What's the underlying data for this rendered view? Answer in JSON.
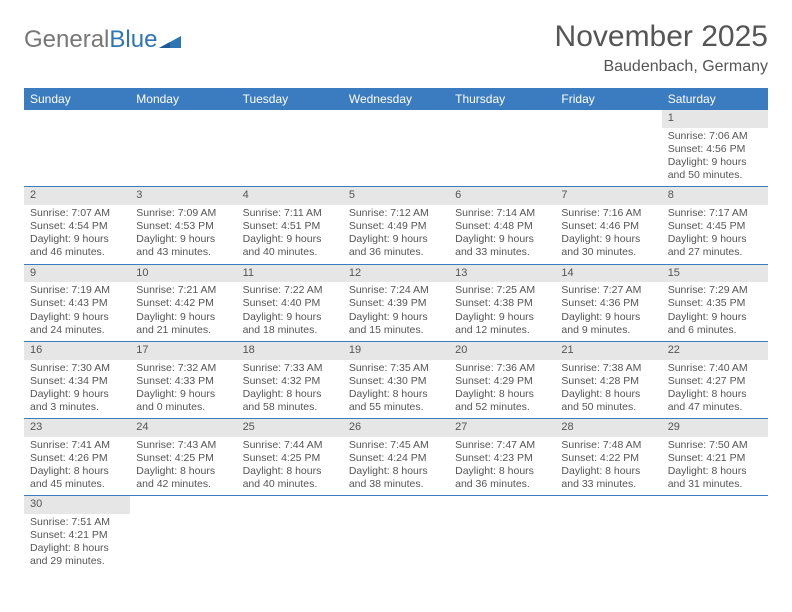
{
  "logo": {
    "text1": "General",
    "text2": "Blue"
  },
  "title": "November 2025",
  "location": "Baudenbach, Germany",
  "daysOfWeek": [
    "Sunday",
    "Monday",
    "Tuesday",
    "Wednesday",
    "Thursday",
    "Friday",
    "Saturday"
  ],
  "colors": {
    "headerBlue": "#3b7bbf",
    "dayStrip": "#e6e6e6",
    "text": "#555555",
    "logoBlue": "#2e75b6"
  },
  "weeks": [
    [
      null,
      null,
      null,
      null,
      null,
      null,
      {
        "n": "1",
        "sunrise": "Sunrise: 7:06 AM",
        "sunset": "Sunset: 4:56 PM",
        "daylight": "Daylight: 9 hours and 50 minutes."
      }
    ],
    [
      {
        "n": "2",
        "sunrise": "Sunrise: 7:07 AM",
        "sunset": "Sunset: 4:54 PM",
        "daylight": "Daylight: 9 hours and 46 minutes."
      },
      {
        "n": "3",
        "sunrise": "Sunrise: 7:09 AM",
        "sunset": "Sunset: 4:53 PM",
        "daylight": "Daylight: 9 hours and 43 minutes."
      },
      {
        "n": "4",
        "sunrise": "Sunrise: 7:11 AM",
        "sunset": "Sunset: 4:51 PM",
        "daylight": "Daylight: 9 hours and 40 minutes."
      },
      {
        "n": "5",
        "sunrise": "Sunrise: 7:12 AM",
        "sunset": "Sunset: 4:49 PM",
        "daylight": "Daylight: 9 hours and 36 minutes."
      },
      {
        "n": "6",
        "sunrise": "Sunrise: 7:14 AM",
        "sunset": "Sunset: 4:48 PM",
        "daylight": "Daylight: 9 hours and 33 minutes."
      },
      {
        "n": "7",
        "sunrise": "Sunrise: 7:16 AM",
        "sunset": "Sunset: 4:46 PM",
        "daylight": "Daylight: 9 hours and 30 minutes."
      },
      {
        "n": "8",
        "sunrise": "Sunrise: 7:17 AM",
        "sunset": "Sunset: 4:45 PM",
        "daylight": "Daylight: 9 hours and 27 minutes."
      }
    ],
    [
      {
        "n": "9",
        "sunrise": "Sunrise: 7:19 AM",
        "sunset": "Sunset: 4:43 PM",
        "daylight": "Daylight: 9 hours and 24 minutes."
      },
      {
        "n": "10",
        "sunrise": "Sunrise: 7:21 AM",
        "sunset": "Sunset: 4:42 PM",
        "daylight": "Daylight: 9 hours and 21 minutes."
      },
      {
        "n": "11",
        "sunrise": "Sunrise: 7:22 AM",
        "sunset": "Sunset: 4:40 PM",
        "daylight": "Daylight: 9 hours and 18 minutes."
      },
      {
        "n": "12",
        "sunrise": "Sunrise: 7:24 AM",
        "sunset": "Sunset: 4:39 PM",
        "daylight": "Daylight: 9 hours and 15 minutes."
      },
      {
        "n": "13",
        "sunrise": "Sunrise: 7:25 AM",
        "sunset": "Sunset: 4:38 PM",
        "daylight": "Daylight: 9 hours and 12 minutes."
      },
      {
        "n": "14",
        "sunrise": "Sunrise: 7:27 AM",
        "sunset": "Sunset: 4:36 PM",
        "daylight": "Daylight: 9 hours and 9 minutes."
      },
      {
        "n": "15",
        "sunrise": "Sunrise: 7:29 AM",
        "sunset": "Sunset: 4:35 PM",
        "daylight": "Daylight: 9 hours and 6 minutes."
      }
    ],
    [
      {
        "n": "16",
        "sunrise": "Sunrise: 7:30 AM",
        "sunset": "Sunset: 4:34 PM",
        "daylight": "Daylight: 9 hours and 3 minutes."
      },
      {
        "n": "17",
        "sunrise": "Sunrise: 7:32 AM",
        "sunset": "Sunset: 4:33 PM",
        "daylight": "Daylight: 9 hours and 0 minutes."
      },
      {
        "n": "18",
        "sunrise": "Sunrise: 7:33 AM",
        "sunset": "Sunset: 4:32 PM",
        "daylight": "Daylight: 8 hours and 58 minutes."
      },
      {
        "n": "19",
        "sunrise": "Sunrise: 7:35 AM",
        "sunset": "Sunset: 4:30 PM",
        "daylight": "Daylight: 8 hours and 55 minutes."
      },
      {
        "n": "20",
        "sunrise": "Sunrise: 7:36 AM",
        "sunset": "Sunset: 4:29 PM",
        "daylight": "Daylight: 8 hours and 52 minutes."
      },
      {
        "n": "21",
        "sunrise": "Sunrise: 7:38 AM",
        "sunset": "Sunset: 4:28 PM",
        "daylight": "Daylight: 8 hours and 50 minutes."
      },
      {
        "n": "22",
        "sunrise": "Sunrise: 7:40 AM",
        "sunset": "Sunset: 4:27 PM",
        "daylight": "Daylight: 8 hours and 47 minutes."
      }
    ],
    [
      {
        "n": "23",
        "sunrise": "Sunrise: 7:41 AM",
        "sunset": "Sunset: 4:26 PM",
        "daylight": "Daylight: 8 hours and 45 minutes."
      },
      {
        "n": "24",
        "sunrise": "Sunrise: 7:43 AM",
        "sunset": "Sunset: 4:25 PM",
        "daylight": "Daylight: 8 hours and 42 minutes."
      },
      {
        "n": "25",
        "sunrise": "Sunrise: 7:44 AM",
        "sunset": "Sunset: 4:25 PM",
        "daylight": "Daylight: 8 hours and 40 minutes."
      },
      {
        "n": "26",
        "sunrise": "Sunrise: 7:45 AM",
        "sunset": "Sunset: 4:24 PM",
        "daylight": "Daylight: 8 hours and 38 minutes."
      },
      {
        "n": "27",
        "sunrise": "Sunrise: 7:47 AM",
        "sunset": "Sunset: 4:23 PM",
        "daylight": "Daylight: 8 hours and 36 minutes."
      },
      {
        "n": "28",
        "sunrise": "Sunrise: 7:48 AM",
        "sunset": "Sunset: 4:22 PM",
        "daylight": "Daylight: 8 hours and 33 minutes."
      },
      {
        "n": "29",
        "sunrise": "Sunrise: 7:50 AM",
        "sunset": "Sunset: 4:21 PM",
        "daylight": "Daylight: 8 hours and 31 minutes."
      }
    ],
    [
      {
        "n": "30",
        "sunrise": "Sunrise: 7:51 AM",
        "sunset": "Sunset: 4:21 PM",
        "daylight": "Daylight: 8 hours and 29 minutes."
      },
      null,
      null,
      null,
      null,
      null,
      null
    ]
  ]
}
